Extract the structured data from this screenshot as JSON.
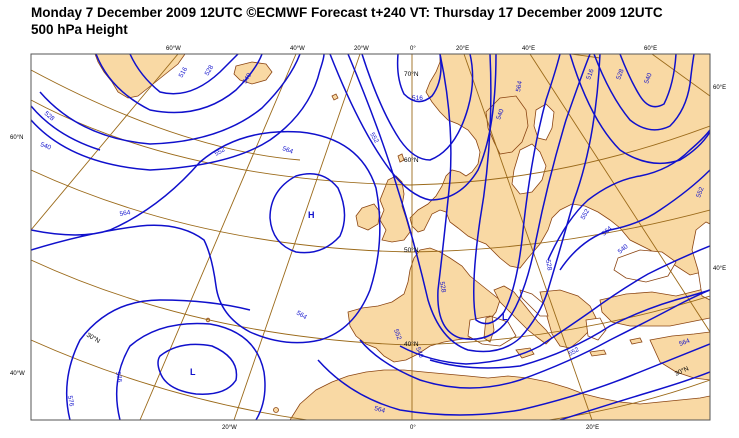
{
  "title": {
    "line1": "Monday 7 December 2009 12UTC ©ECMWF Forecast t+240 VT: Thursday 17 December 2009 12UTC",
    "line2": "500 hPa Height"
  },
  "colors": {
    "land": "#f9d9a4",
    "sea": "#ffffff",
    "coast": "#8b4513",
    "contour": "#1010cc",
    "graticule": "#9b6a1a",
    "frame": "#555555"
  },
  "longitude_labels_top": [
    "60°W",
    "40°W",
    "20°W",
    "0°",
    "20°E",
    "40°E",
    "60°E"
  ],
  "longitude_labels_bottom": [
    "20°W",
    "0°",
    "20°E"
  ],
  "latitude_labels_left": [
    "60°N",
    "40°W"
  ],
  "latitude_labels_right": [
    "60°E",
    "40°E"
  ],
  "latitude_labels_inner": [
    "70°N",
    "60°N",
    "50°N",
    "40°N",
    "30°N",
    "30°N"
  ],
  "contour_labels": [
    "516",
    "528",
    "540",
    "552",
    "564",
    "576",
    "528",
    "540",
    "552",
    "564",
    "564",
    "552",
    "540",
    "528",
    "516",
    "576",
    "564",
    "552",
    "540",
    "564",
    "552",
    "540",
    "528",
    "516",
    "552",
    "564",
    "540",
    "528",
    "564"
  ],
  "pressure_centers": {
    "high": "H",
    "low_1": "L",
    "low_2": "L"
  }
}
